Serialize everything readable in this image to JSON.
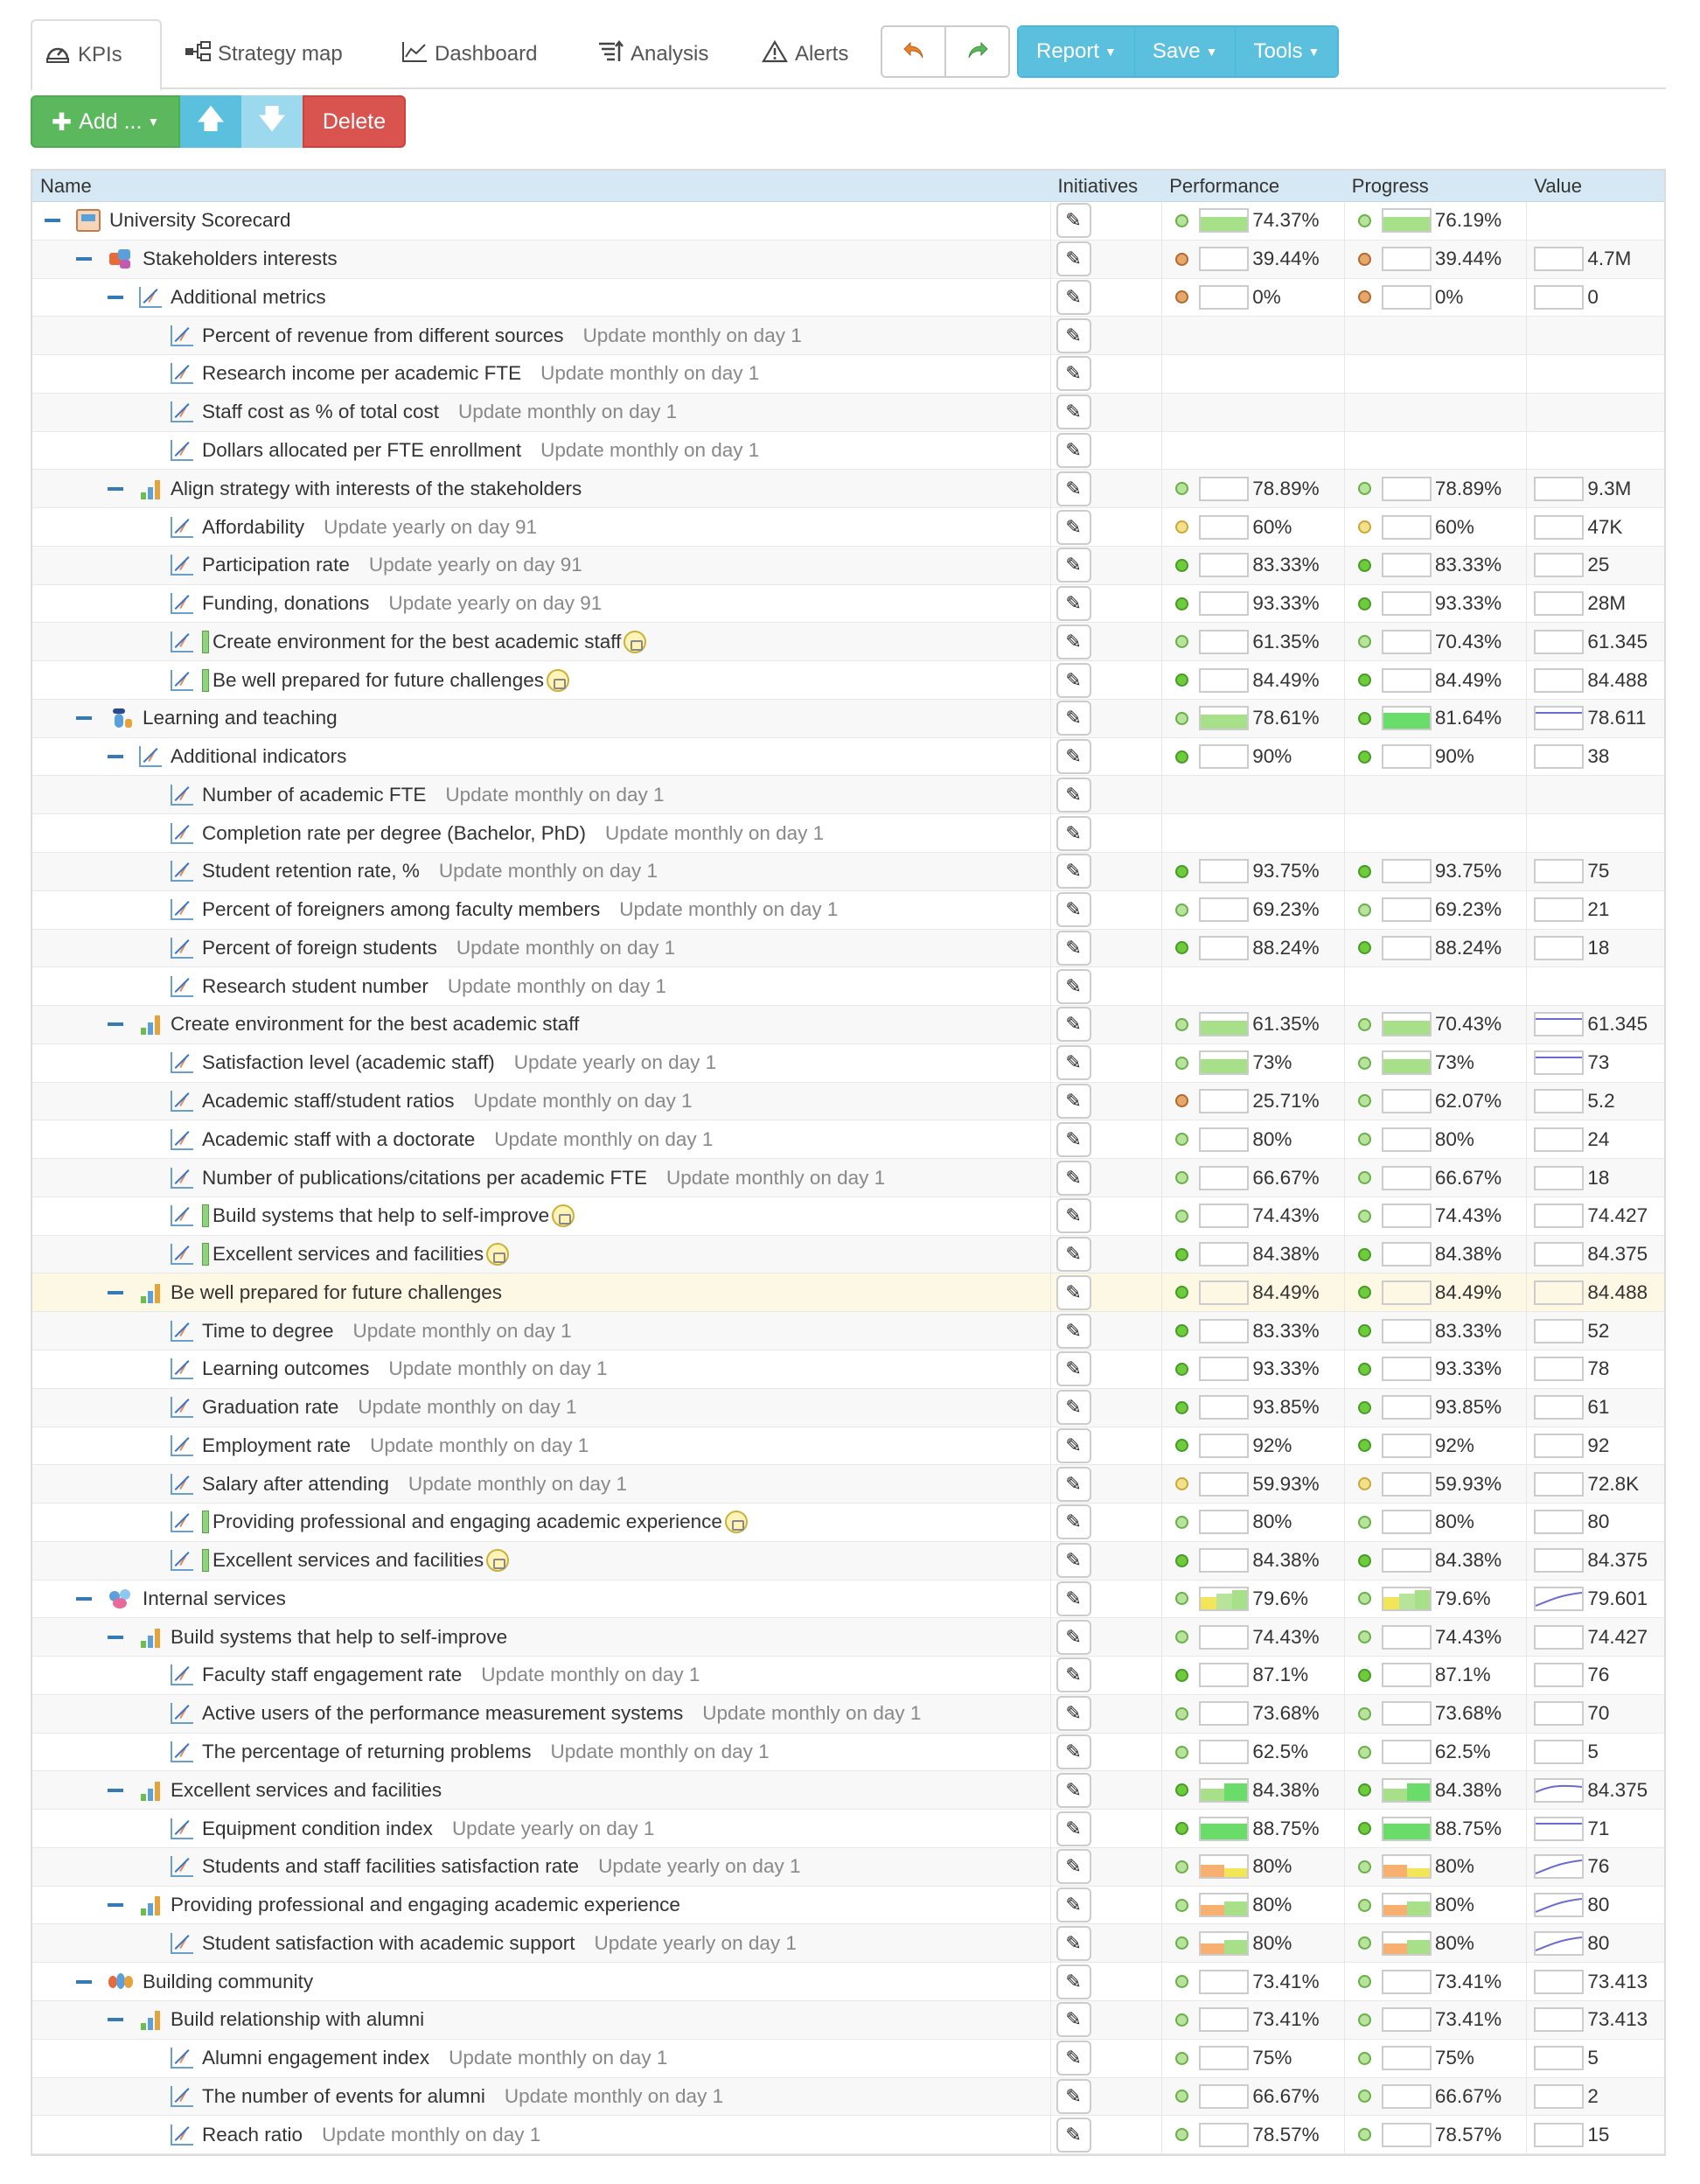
{
  "tabs": [
    {
      "label": "KPIs",
      "icon": "speedometer-icon"
    },
    {
      "label": "Strategy map",
      "icon": "strategy-map-icon"
    },
    {
      "label": "Dashboard",
      "icon": "line-chart-icon"
    },
    {
      "label": "Analysis",
      "icon": "sort-analysis-icon"
    },
    {
      "label": "Alerts",
      "icon": "warning-icon"
    }
  ],
  "history": {
    "undo_icon": "undo-icon",
    "redo_icon": "redo-icon"
  },
  "menus": {
    "report": "Report",
    "save": "Save",
    "tools": "Tools"
  },
  "toolbar": {
    "add": "Add ...",
    "up_icon": "arrow-up-icon",
    "down_icon": "arrow-down-icon",
    "delete": "Delete"
  },
  "columns": {
    "name": "Name",
    "initiatives": "Initiatives",
    "performance": "Performance",
    "progress": "Progress",
    "value": "Value"
  },
  "colors": {
    "accent": "#5bc0de",
    "add": "#5cb85c",
    "delete": "#d9534f",
    "header": "#d6e8f3",
    "highlight": "#fdf8e4"
  },
  "rows": [
    {
      "level": 0,
      "icon": "scorecard",
      "toggle": true,
      "label": "University Scorecard",
      "schedule": "",
      "perf": "74.37%",
      "perf_dot": "lg",
      "prog": "76.19%",
      "prog_dot": "lg",
      "value": "",
      "spark": "green-full",
      "vspark": "none"
    },
    {
      "level": 1,
      "icon": "stakeholders",
      "toggle": true,
      "label": "Stakeholders interests",
      "schedule": "",
      "perf": "39.44%",
      "perf_dot": "o",
      "prog": "39.44%",
      "prog_dot": "o",
      "value": "4.7M",
      "spark": "empty",
      "vspark": "empty"
    },
    {
      "level": 2,
      "icon": "kpi",
      "toggle": true,
      "label": "Additional metrics",
      "schedule": "",
      "perf": "0%",
      "perf_dot": "o",
      "prog": "0%",
      "prog_dot": "o",
      "value": "0",
      "spark": "empty",
      "vspark": "empty"
    },
    {
      "level": 3,
      "icon": "kpi",
      "label": "Percent of revenue from different sources",
      "schedule": "Update monthly on day 1",
      "perf": "",
      "prog": "",
      "value": ""
    },
    {
      "level": 3,
      "icon": "kpi",
      "label": "Research income per academic FTE",
      "schedule": "Update monthly on day 1",
      "perf": "",
      "prog": "",
      "value": ""
    },
    {
      "level": 3,
      "icon": "kpi",
      "label": "Staff cost as % of total cost",
      "schedule": "Update monthly on day 1",
      "perf": "",
      "prog": "",
      "value": ""
    },
    {
      "level": 3,
      "icon": "kpi",
      "label": "Dollars allocated per FTE enrollment",
      "schedule": "Update monthly on day 1",
      "perf": "",
      "prog": "",
      "value": ""
    },
    {
      "level": 2,
      "icon": "bar",
      "toggle": true,
      "label": "Align strategy with interests of the stakeholders",
      "schedule": "",
      "perf": "78.89%",
      "perf_dot": "lg",
      "prog": "78.89%",
      "prog_dot": "lg",
      "value": "9.3M",
      "spark": "empty",
      "vspark": "empty"
    },
    {
      "level": 3,
      "icon": "kpi",
      "label": "Affordability",
      "schedule": "Update yearly on day 91",
      "perf": "60%",
      "perf_dot": "y",
      "prog": "60%",
      "prog_dot": "y",
      "value": "47K",
      "spark": "empty",
      "vspark": "empty"
    },
    {
      "level": 3,
      "icon": "kpi",
      "label": "Participation rate",
      "schedule": "Update yearly on day 91",
      "perf": "83.33%",
      "perf_dot": "g",
      "prog": "83.33%",
      "prog_dot": "g",
      "value": "25",
      "spark": "empty",
      "vspark": "empty"
    },
    {
      "level": 3,
      "icon": "kpi",
      "label": "Funding, donations",
      "schedule": "Update yearly on day 91",
      "perf": "93.33%",
      "perf_dot": "g",
      "prog": "93.33%",
      "prog_dot": "g",
      "value": "28M",
      "spark": "empty",
      "vspark": "empty"
    },
    {
      "level": 3,
      "icon": "kpi",
      "link": true,
      "label": "Create environment for the best academic staff",
      "schedule": "",
      "perf": "61.35%",
      "perf_dot": "lg",
      "prog": "70.43%",
      "prog_dot": "lg",
      "value": "61.345",
      "spark": "empty",
      "vspark": "empty"
    },
    {
      "level": 3,
      "icon": "kpi",
      "link": true,
      "label": "Be well prepared for future challenges",
      "schedule": "",
      "perf": "84.49%",
      "perf_dot": "g",
      "prog": "84.49%",
      "prog_dot": "g",
      "value": "84.488",
      "spark": "empty",
      "vspark": "empty"
    },
    {
      "level": 1,
      "icon": "teacher",
      "toggle": true,
      "label": "Learning and teaching",
      "schedule": "",
      "perf": "78.61%",
      "perf_dot": "lg",
      "prog": "81.64%",
      "prog_dot": "g",
      "value": "78.611",
      "spark": "green-full",
      "prog_spark": "green-strong",
      "vspark": "flat-line"
    },
    {
      "level": 2,
      "icon": "kpi",
      "toggle": true,
      "label": "Additional indicators",
      "schedule": "",
      "perf": "90%",
      "perf_dot": "g",
      "prog": "90%",
      "prog_dot": "g",
      "value": "38",
      "spark": "empty",
      "vspark": "empty"
    },
    {
      "level": 3,
      "icon": "kpi",
      "label": "Number of academic FTE",
      "schedule": "Update monthly on day 1",
      "perf": "",
      "prog": "",
      "value": ""
    },
    {
      "level": 3,
      "icon": "kpi",
      "label": "Completion rate per degree (Bachelor, PhD)",
      "schedule": "Update monthly on day 1",
      "perf": "",
      "prog": "",
      "value": ""
    },
    {
      "level": 3,
      "icon": "kpi",
      "label": "Student retention rate, %",
      "schedule": "Update monthly on day 1",
      "perf": "93.75%",
      "perf_dot": "g",
      "prog": "93.75%",
      "prog_dot": "g",
      "value": "75",
      "spark": "empty",
      "vspark": "empty"
    },
    {
      "level": 3,
      "icon": "kpi",
      "label": "Percent of foreigners among faculty members",
      "schedule": "Update monthly on day 1",
      "perf": "69.23%",
      "perf_dot": "lg",
      "prog": "69.23%",
      "prog_dot": "lg",
      "value": "21",
      "spark": "empty",
      "vspark": "empty"
    },
    {
      "level": 3,
      "icon": "kpi",
      "label": "Percent of foreign students",
      "schedule": "Update monthly on day 1",
      "perf": "88.24%",
      "perf_dot": "g",
      "prog": "88.24%",
      "prog_dot": "g",
      "value": "18",
      "spark": "empty",
      "vspark": "empty"
    },
    {
      "level": 3,
      "icon": "kpi",
      "label": "Research student number",
      "schedule": "Update monthly on day 1",
      "perf": "",
      "prog": "",
      "value": ""
    },
    {
      "level": 2,
      "icon": "bar",
      "toggle": true,
      "label": "Create environment for the best academic staff",
      "schedule": "",
      "perf": "61.35%",
      "perf_dot": "lg",
      "prog": "70.43%",
      "prog_dot": "lg",
      "value": "61.345",
      "spark": "green-full",
      "vspark": "flat-line"
    },
    {
      "level": 3,
      "icon": "kpi",
      "label": "Satisfaction level (academic staff)",
      "schedule": "Update yearly on day 1",
      "perf": "73%",
      "perf_dot": "lg",
      "prog": "73%",
      "prog_dot": "lg",
      "value": "73",
      "spark": "green-full",
      "vspark": "flat-line"
    },
    {
      "level": 3,
      "icon": "kpi",
      "label": "Academic staff/student ratios",
      "schedule": "Update monthly on day 1",
      "perf": "25.71%",
      "perf_dot": "o",
      "prog": "62.07%",
      "prog_dot": "lg",
      "value": "5.2",
      "spark": "empty",
      "vspark": "empty"
    },
    {
      "level": 3,
      "icon": "kpi",
      "label": "Academic staff with a doctorate",
      "schedule": "Update monthly on day 1",
      "perf": "80%",
      "perf_dot": "lg",
      "prog": "80%",
      "prog_dot": "lg",
      "value": "24",
      "spark": "empty",
      "vspark": "empty"
    },
    {
      "level": 3,
      "icon": "kpi",
      "label": "Number of publications/citations per academic FTE",
      "schedule": "Update monthly on day 1",
      "perf": "66.67%",
      "perf_dot": "lg",
      "prog": "66.67%",
      "prog_dot": "lg",
      "value": "18",
      "spark": "empty",
      "vspark": "empty"
    },
    {
      "level": 3,
      "icon": "kpi",
      "link": true,
      "label": "Build systems that help to self-improve",
      "schedule": "",
      "perf": "74.43%",
      "perf_dot": "lg",
      "prog": "74.43%",
      "prog_dot": "lg",
      "value": "74.427",
      "spark": "empty",
      "vspark": "empty"
    },
    {
      "level": 3,
      "icon": "kpi",
      "link": true,
      "label": "Excellent services and facilities",
      "schedule": "",
      "perf": "84.38%",
      "perf_dot": "g",
      "prog": "84.38%",
      "prog_dot": "g",
      "value": "84.375",
      "spark": "empty",
      "vspark": "empty"
    },
    {
      "level": 2,
      "icon": "bar",
      "toggle": true,
      "highlight": true,
      "label": "Be well prepared for future challenges",
      "schedule": "",
      "perf": "84.49%",
      "perf_dot": "g",
      "prog": "84.49%",
      "prog_dot": "g",
      "value": "84.488",
      "spark": "empty",
      "vspark": "empty"
    },
    {
      "level": 3,
      "icon": "kpi",
      "label": "Time to degree",
      "schedule": "Update monthly on day 1",
      "perf": "83.33%",
      "perf_dot": "g",
      "prog": "83.33%",
      "prog_dot": "g",
      "value": "52",
      "spark": "empty",
      "vspark": "empty"
    },
    {
      "level": 3,
      "icon": "kpi",
      "label": "Learning outcomes",
      "schedule": "Update monthly on day 1",
      "perf": "93.33%",
      "perf_dot": "g",
      "prog": "93.33%",
      "prog_dot": "g",
      "value": "78",
      "spark": "empty",
      "vspark": "empty"
    },
    {
      "level": 3,
      "icon": "kpi",
      "label": "Graduation rate",
      "schedule": "Update monthly on day 1",
      "perf": "93.85%",
      "perf_dot": "g",
      "prog": "93.85%",
      "prog_dot": "g",
      "value": "61",
      "spark": "empty",
      "vspark": "empty"
    },
    {
      "level": 3,
      "icon": "kpi",
      "label": "Employment rate",
      "schedule": "Update monthly on day 1",
      "perf": "92%",
      "perf_dot": "g",
      "prog": "92%",
      "prog_dot": "g",
      "value": "92",
      "spark": "empty",
      "vspark": "empty"
    },
    {
      "level": 3,
      "icon": "kpi",
      "label": "Salary after attending",
      "schedule": "Update monthly on day 1",
      "perf": "59.93%",
      "perf_dot": "y",
      "prog": "59.93%",
      "prog_dot": "y",
      "value": "72.8K",
      "spark": "empty",
      "vspark": "empty"
    },
    {
      "level": 3,
      "icon": "kpi",
      "link": true,
      "label": "Providing professional and engaging academic experience",
      "schedule": "",
      "perf": "80%",
      "perf_dot": "lg",
      "prog": "80%",
      "prog_dot": "lg",
      "value": "80",
      "spark": "empty",
      "vspark": "empty"
    },
    {
      "level": 3,
      "icon": "kpi",
      "link": true,
      "label": "Excellent services and facilities",
      "schedule": "",
      "perf": "84.38%",
      "perf_dot": "g",
      "prog": "84.38%",
      "prog_dot": "g",
      "value": "84.375",
      "spark": "empty",
      "vspark": "empty"
    },
    {
      "level": 1,
      "icon": "people",
      "toggle": true,
      "label": "Internal services",
      "schedule": "",
      "perf": "79.6%",
      "perf_dot": "lg",
      "prog": "79.6%",
      "prog_dot": "lg",
      "value": "79.601",
      "spark": "yellow-green",
      "vspark": "rising"
    },
    {
      "level": 2,
      "icon": "bar",
      "toggle": true,
      "label": "Build systems that help to self-improve",
      "schedule": "",
      "perf": "74.43%",
      "perf_dot": "lg",
      "prog": "74.43%",
      "prog_dot": "lg",
      "value": "74.427",
      "spark": "empty",
      "vspark": "empty"
    },
    {
      "level": 3,
      "icon": "kpi",
      "label": "Faculty staff engagement rate",
      "schedule": "Update monthly on day 1",
      "perf": "87.1%",
      "perf_dot": "g",
      "prog": "87.1%",
      "prog_dot": "g",
      "value": "76",
      "spark": "empty",
      "vspark": "empty"
    },
    {
      "level": 3,
      "icon": "kpi",
      "label": "Active users of the performance measurement systems",
      "schedule": "Update monthly on day 1",
      "perf": "73.68%",
      "perf_dot": "lg",
      "prog": "73.68%",
      "prog_dot": "lg",
      "value": "70",
      "spark": "empty",
      "vspark": "empty"
    },
    {
      "level": 3,
      "icon": "kpi",
      "label": "The percentage of returning problems",
      "schedule": "Update monthly on day 1",
      "perf": "62.5%",
      "perf_dot": "lg",
      "prog": "62.5%",
      "prog_dot": "lg",
      "value": "5",
      "spark": "empty",
      "vspark": "empty"
    },
    {
      "level": 2,
      "icon": "bar",
      "toggle": true,
      "label": "Excellent services and facilities",
      "schedule": "",
      "perf": "84.38%",
      "perf_dot": "g",
      "prog": "84.38%",
      "prog_dot": "g",
      "value": "84.375",
      "spark": "green-bars",
      "vspark": "rising-flat"
    },
    {
      "level": 3,
      "icon": "kpi",
      "label": "Equipment condition index",
      "schedule": "Update yearly on day 1",
      "perf": "88.75%",
      "perf_dot": "g",
      "prog": "88.75%",
      "prog_dot": "g",
      "value": "71",
      "spark": "green-strong",
      "vspark": "flat-line"
    },
    {
      "level": 3,
      "icon": "kpi",
      "label": "Students and staff facilities satisfaction rate",
      "schedule": "Update yearly on day 1",
      "perf": "80%",
      "perf_dot": "lg",
      "prog": "80%",
      "prog_dot": "lg",
      "value": "76",
      "spark": "orange-yellow",
      "vspark": "rising"
    },
    {
      "level": 2,
      "icon": "bar",
      "toggle": true,
      "label": "Providing professional and engaging academic experience",
      "schedule": "",
      "perf": "80%",
      "perf_dot": "lg",
      "prog": "80%",
      "prog_dot": "lg",
      "value": "80",
      "spark": "orange-green",
      "vspark": "rising"
    },
    {
      "level": 3,
      "icon": "kpi",
      "label": "Student satisfaction with academic support",
      "schedule": "Update yearly on day 1",
      "perf": "80%",
      "perf_dot": "lg",
      "prog": "80%",
      "prog_dot": "lg",
      "value": "80",
      "spark": "orange-green",
      "vspark": "rising"
    },
    {
      "level": 1,
      "icon": "community",
      "toggle": true,
      "label": "Building community",
      "schedule": "",
      "perf": "73.41%",
      "perf_dot": "lg",
      "prog": "73.41%",
      "prog_dot": "lg",
      "value": "73.413",
      "spark": "empty",
      "vspark": "empty"
    },
    {
      "level": 2,
      "icon": "bar",
      "toggle": true,
      "label": "Build relationship with alumni",
      "schedule": "",
      "perf": "73.41%",
      "perf_dot": "lg",
      "prog": "73.41%",
      "prog_dot": "lg",
      "value": "73.413",
      "spark": "empty",
      "vspark": "empty"
    },
    {
      "level": 3,
      "icon": "kpi",
      "label": "Alumni engagement index",
      "schedule": "Update monthly on day 1",
      "perf": "75%",
      "perf_dot": "lg",
      "prog": "75%",
      "prog_dot": "lg",
      "value": "5",
      "spark": "empty",
      "vspark": "empty"
    },
    {
      "level": 3,
      "icon": "kpi",
      "label": "The number of events for alumni",
      "schedule": "Update monthly on day 1",
      "perf": "66.67%",
      "perf_dot": "lg",
      "prog": "66.67%",
      "prog_dot": "lg",
      "value": "2",
      "spark": "empty",
      "vspark": "empty"
    },
    {
      "level": 3,
      "icon": "kpi",
      "label": "Reach ratio",
      "schedule": "Update monthly on day 1",
      "perf": "78.57%",
      "perf_dot": "lg",
      "prog": "78.57%",
      "prog_dot": "lg",
      "value": "15",
      "spark": "empty",
      "vspark": "empty"
    }
  ]
}
